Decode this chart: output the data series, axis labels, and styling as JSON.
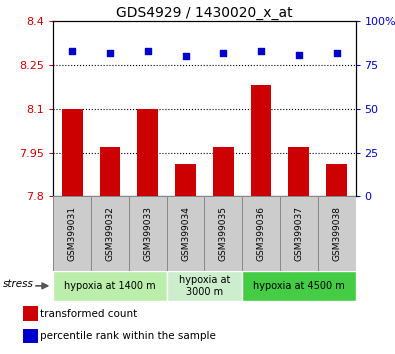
{
  "title": "GDS4929 / 1430020_x_at",
  "samples": [
    "GSM399031",
    "GSM399032",
    "GSM399033",
    "GSM399034",
    "GSM399035",
    "GSM399036",
    "GSM399037",
    "GSM399038"
  ],
  "bar_values": [
    8.1,
    7.97,
    8.1,
    7.91,
    7.97,
    8.18,
    7.97,
    7.91
  ],
  "percentile_values": [
    83,
    82,
    83,
    80,
    82,
    83,
    81,
    82
  ],
  "bar_color": "#cc0000",
  "dot_color": "#0000cc",
  "ylim": [
    7.8,
    8.4
  ],
  "yticks_left": [
    7.8,
    7.95,
    8.1,
    8.25,
    8.4
  ],
  "yticks_right": [
    0,
    25,
    50,
    75,
    100
  ],
  "grid_values": [
    7.95,
    8.1,
    8.25
  ],
  "groups": [
    {
      "label": "hypoxia at 1400 m",
      "start": 0,
      "end": 3,
      "color": "#bbeeaa"
    },
    {
      "label": "hypoxia at\n3000 m",
      "start": 3,
      "end": 5,
      "color": "#cceecc"
    },
    {
      "label": "hypoxia at 4500 m",
      "start": 5,
      "end": 8,
      "color": "#44cc44"
    }
  ],
  "legend_items": [
    {
      "label": "transformed count",
      "color": "#cc0000"
    },
    {
      "label": "percentile rank within the sample",
      "color": "#0000cc"
    }
  ],
  "stress_label": "stress",
  "left_tick_color": "#cc0000",
  "right_tick_color": "#0000cc",
  "bar_width": 0.55,
  "xtick_box_color": "#cccccc",
  "xtick_box_edge": "#888888"
}
